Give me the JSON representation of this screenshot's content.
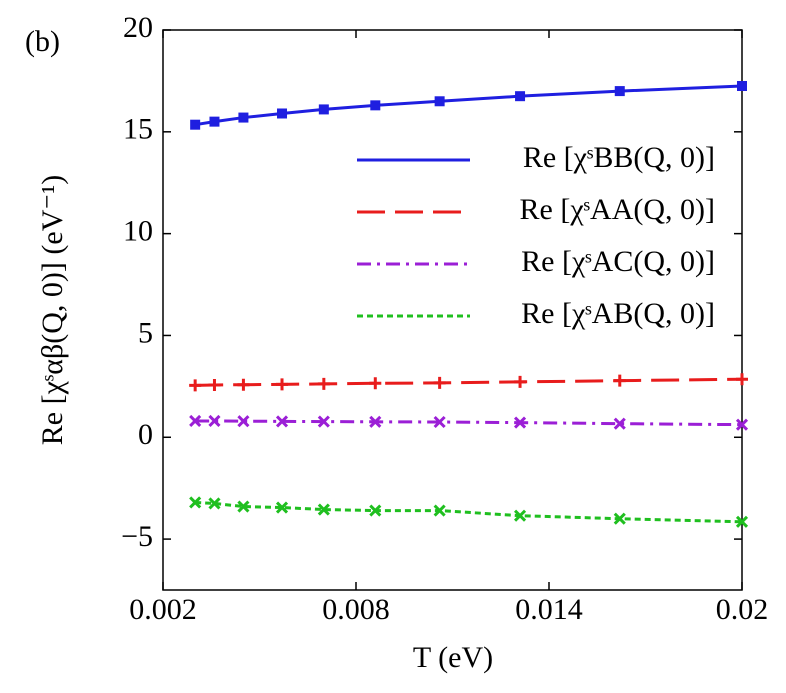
{
  "chart_data": {
    "type": "line",
    "panel_label": "(b)",
    "xlabel": "T (eV)",
    "ylabel": "Re [χˢαβ(Q, 0)] (eV⁻¹)",
    "x": [
      0.003,
      0.0036,
      0.0045,
      0.0057,
      0.007,
      0.0086,
      0.0106,
      0.0131,
      0.0162,
      0.02
    ],
    "series": [
      {
        "name": "Re [χˢBB(Q, 0)]",
        "color": "#1f1fe0",
        "dash": "solid",
        "marker": "square",
        "values": [
          15.35,
          15.5,
          15.7,
          15.9,
          16.1,
          16.3,
          16.5,
          16.75,
          17.0,
          17.25
        ]
      },
      {
        "name": "Re [χˢAA(Q, 0)]",
        "color": "#e81c1c",
        "dash": "long",
        "marker": "plus",
        "values": [
          2.55,
          2.57,
          2.58,
          2.6,
          2.62,
          2.65,
          2.67,
          2.72,
          2.78,
          2.85
        ]
      },
      {
        "name": "Re [χˢAC(Q, 0)]",
        "color": "#9b1fd6",
        "dash": "dashdot",
        "marker": "x",
        "values": [
          0.8,
          0.8,
          0.79,
          0.78,
          0.77,
          0.76,
          0.75,
          0.72,
          0.67,
          0.62
        ]
      },
      {
        "name": "Re [χˢAB(Q, 0)]",
        "color": "#1fbf1f",
        "dash": "dotted",
        "marker": "x",
        "values": [
          -3.2,
          -3.25,
          -3.4,
          -3.45,
          -3.55,
          -3.6,
          -3.6,
          -3.85,
          -4.0,
          -4.15
        ]
      }
    ],
    "xlim": [
      0.002,
      0.02
    ],
    "xticks": [
      0.002,
      0.008,
      0.014,
      0.02
    ],
    "ylim": [
      -7.5,
      20
    ],
    "yticks": [
      {
        "value": -5,
        "label": "−5"
      },
      0,
      5,
      10,
      15,
      20
    ],
    "grid": false,
    "legend": "upper right"
  }
}
